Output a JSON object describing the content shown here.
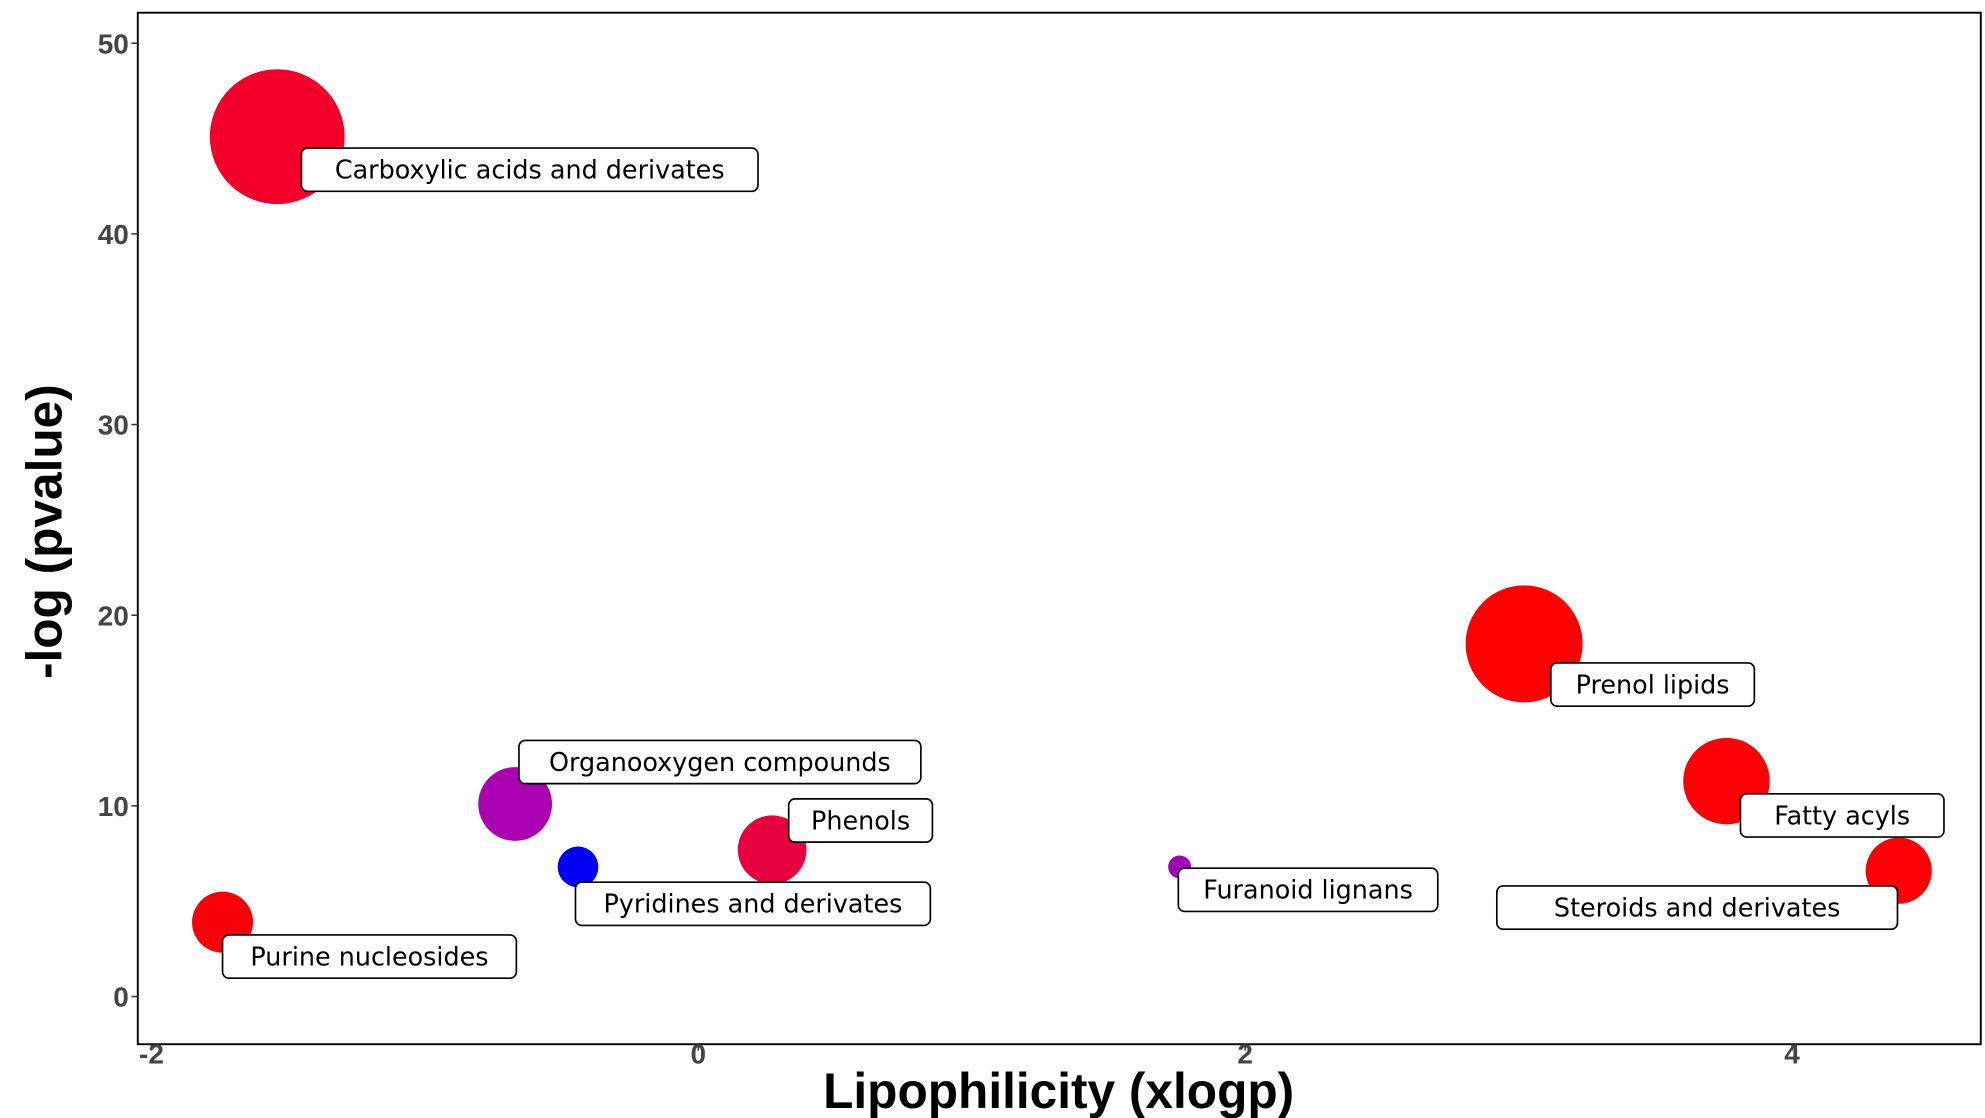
{
  "chart_data": {
    "type": "scatter",
    "subtype": "bubble",
    "title": "",
    "xlabel": "Lipophilicity (xlogp)",
    "ylabel": "-log (pvalue)",
    "xlim": [
      -2.05,
      4.69
    ],
    "ylim": [
      -2.5,
      51.6
    ],
    "xticks": [
      -2,
      0,
      2,
      4
    ],
    "xtick_labels": [
      "-2",
      "0",
      "2",
      "4"
    ],
    "yticks": [
      0,
      10,
      20,
      30,
      40,
      50
    ],
    "ytick_labels": [
      "0",
      "10",
      "20",
      "30",
      "40",
      "50"
    ],
    "grid": false,
    "legend": "none",
    "points": [
      {
        "label": "Carboxylic acids and derivates",
        "x": -1.54,
        "y": 45.1,
        "size": 53,
        "color": "#f2002a"
      },
      {
        "label": "Purine nucleosides",
        "x": -1.74,
        "y": 3.9,
        "size": 24,
        "color": "#f80008"
      },
      {
        "label": "Organooxygen compounds",
        "x": -0.67,
        "y": 10.1,
        "size": 29,
        "color": "#aa00b2"
      },
      {
        "label": "Pyridines and derivates",
        "x": -0.44,
        "y": 6.8,
        "size": 16,
        "color": "#0000f2"
      },
      {
        "label": "Phenols",
        "x": 0.27,
        "y": 7.7,
        "size": 27,
        "color": "#e8003e"
      },
      {
        "label": "Furanoid lignans",
        "x": 1.76,
        "y": 6.8,
        "size": 9,
        "color": "#a000b8"
      },
      {
        "label": "Prenol lipids",
        "x": 3.02,
        "y": 18.5,
        "size": 46,
        "color": "#fe0000"
      },
      {
        "label": "Fatty acyls",
        "x": 3.76,
        "y": 11.3,
        "size": 34,
        "color": "#fc0004"
      },
      {
        "label": "Steroids and derivates",
        "x": 4.39,
        "y": 6.6,
        "size": 26,
        "color": "#fc0004"
      }
    ]
  }
}
